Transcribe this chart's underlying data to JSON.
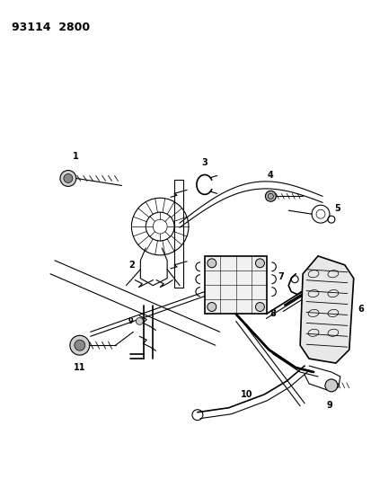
{
  "title": "93114  2800",
  "background_color": "#ffffff",
  "line_color": "#000000",
  "fig_width": 4.14,
  "fig_height": 5.33,
  "dpi": 100
}
